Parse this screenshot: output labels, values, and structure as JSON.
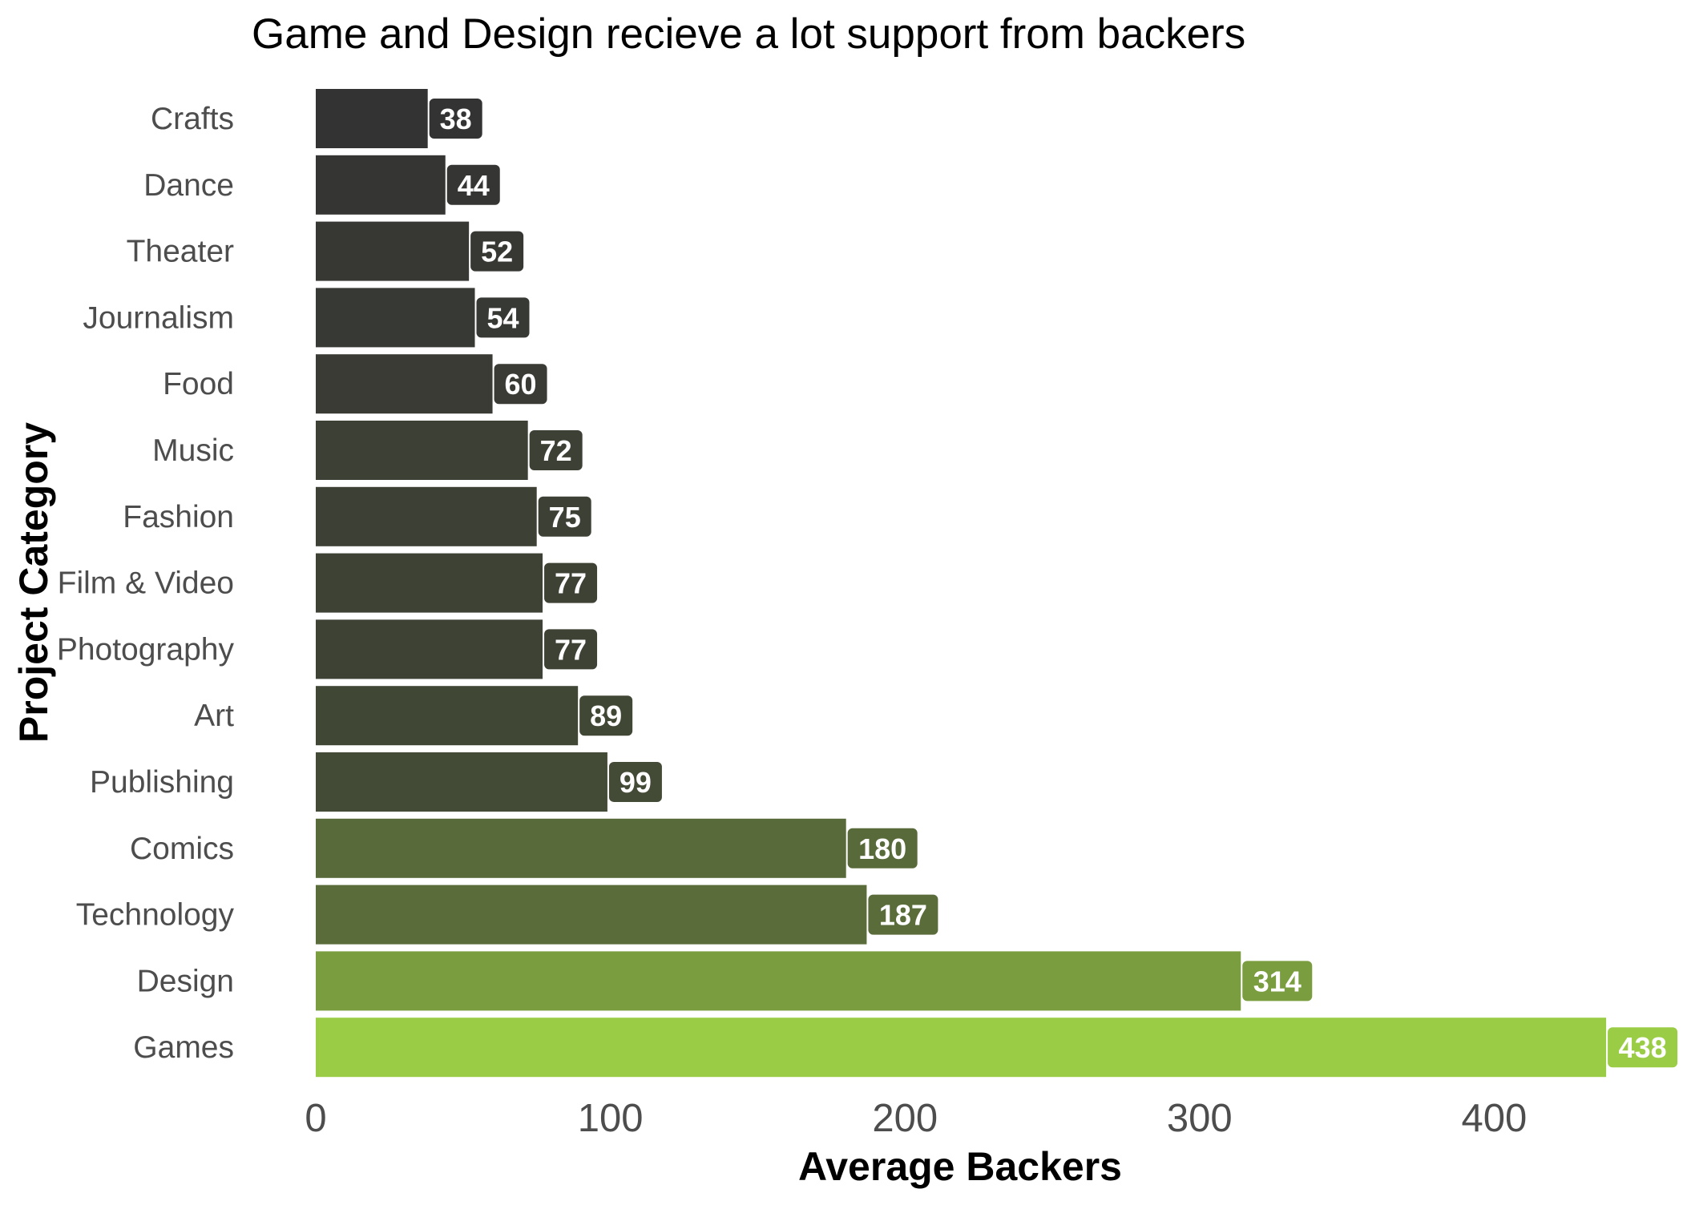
{
  "chart_data": {
    "type": "bar",
    "orientation": "horizontal",
    "title": "Game and Design recieve a lot support from backers",
    "xlabel": "Average Backers",
    "ylabel": "Project Category",
    "categories": [
      "Crafts",
      "Dance",
      "Theater",
      "Journalism",
      "Food",
      "Music",
      "Fashion",
      "Film & Video",
      "Photography",
      "Art",
      "Publishing",
      "Comics",
      "Technology",
      "Design",
      "Games"
    ],
    "values": [
      38,
      44,
      52,
      54,
      60,
      72,
      75,
      77,
      77,
      89,
      99,
      180,
      187,
      314,
      438
    ],
    "data_labels": [
      "38",
      "44",
      "52",
      "54",
      "60",
      "72",
      "75",
      "77",
      "77",
      "89",
      "99",
      "180",
      "187",
      "314",
      "438"
    ],
    "xlim": [
      0,
      460
    ],
    "x_ticks": [
      0,
      100,
      200,
      300,
      400
    ],
    "x_tick_labels": [
      "0",
      "100",
      "200",
      "300",
      "400"
    ],
    "grid": false,
    "legend": "none",
    "color_scale": {
      "low": "#333333",
      "high": "#9acd45"
    }
  }
}
